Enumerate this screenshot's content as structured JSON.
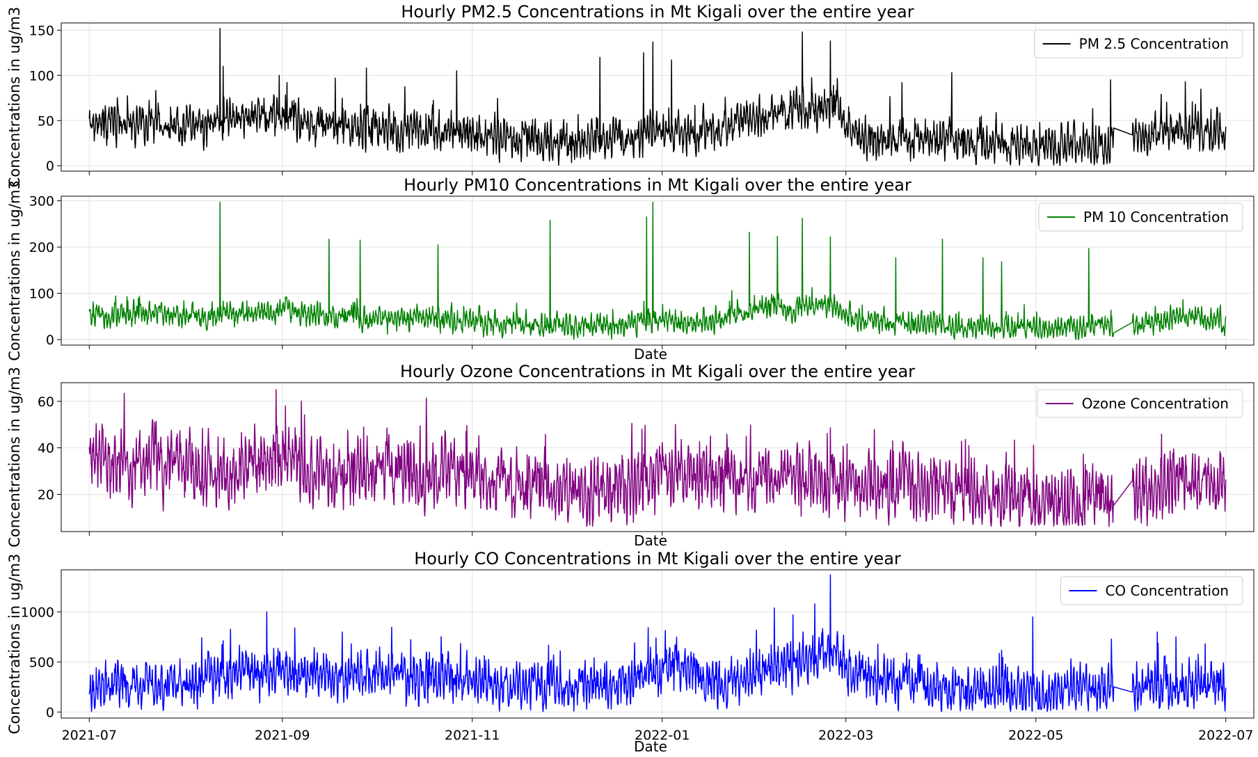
{
  "figure": {
    "x_ticks": [
      "2021-07",
      "2021-09",
      "2021-11",
      "2022-01",
      "2022-03",
      "2022-05",
      "2022-07"
    ],
    "x_range": [
      "2021-06-22",
      "2022-07-10"
    ],
    "data_range": [
      "2021-07-01",
      "2022-07-01"
    ],
    "gap": [
      "2022-05-26",
      "2022-06-01"
    ]
  },
  "chart_data": [
    {
      "type": "line",
      "title": "Hourly PM2.5 Concentrations in Mt Kigali over the entire year",
      "xlabel": "",
      "ylabel": "Concentrations in ug/m3",
      "ylim": [
        -6,
        158
      ],
      "y_ticks": [
        0,
        50,
        100,
        150
      ],
      "grid": true,
      "legend": "top-right",
      "series": [
        {
          "name": "PM 2.5 Concentration",
          "color": "#000000",
          "base_profile": [
            [
              "2021-07-01",
              45
            ],
            [
              "2021-07-20",
              48
            ],
            [
              "2021-08-05",
              42
            ],
            [
              "2021-08-20",
              50
            ],
            [
              "2021-09-01",
              55
            ],
            [
              "2021-09-20",
              40
            ],
            [
              "2021-10-15",
              42
            ],
            [
              "2021-11-15",
              28
            ],
            [
              "2021-12-15",
              26
            ],
            [
              "2022-01-01",
              40
            ],
            [
              "2022-01-10",
              32
            ],
            [
              "2022-02-01",
              55
            ],
            [
              "2022-02-25",
              65
            ],
            [
              "2022-03-05",
              32
            ],
            [
              "2022-04-01",
              28
            ],
            [
              "2022-05-01",
              22
            ],
            [
              "2022-05-26",
              28
            ],
            [
              "2022-06-01",
              30
            ],
            [
              "2022-06-20",
              42
            ],
            [
              "2022-07-01",
              35
            ]
          ],
          "noise": 12,
          "floor": 0,
          "peaks": [
            [
              "2021-08-12",
              152
            ],
            [
              "2021-08-13",
              110
            ],
            [
              "2021-08-31",
              100
            ],
            [
              "2021-09-28",
              108
            ],
            [
              "2021-09-18",
              97
            ],
            [
              "2021-10-27",
              105
            ],
            [
              "2021-12-12",
              120
            ],
            [
              "2021-12-26",
              125
            ],
            [
              "2021-12-29",
              137
            ],
            [
              "2022-01-04",
              117
            ],
            [
              "2022-02-15",
              148
            ],
            [
              "2022-02-24",
              138
            ],
            [
              "2022-03-19",
              92
            ],
            [
              "2022-04-04",
              103
            ],
            [
              "2022-05-25",
              95
            ],
            [
              "2022-06-18",
              93
            ]
          ]
        }
      ]
    },
    {
      "type": "line",
      "title": "Hourly PM10 Concentrations in Mt Kigali over the entire year",
      "xlabel": "Date",
      "ylabel": "Concentrations in ug/m3",
      "ylim": [
        -12,
        310
      ],
      "y_ticks": [
        0,
        100,
        200,
        300
      ],
      "grid": true,
      "legend": "top-right",
      "series": [
        {
          "name": "PM 10 Concentration",
          "color": "#008000",
          "base_profile": [
            [
              "2021-07-01",
              50
            ],
            [
              "2021-07-20",
              60
            ],
            [
              "2021-08-05",
              52
            ],
            [
              "2021-08-20",
              55
            ],
            [
              "2021-09-01",
              65
            ],
            [
              "2021-09-20",
              45
            ],
            [
              "2021-10-15",
              45
            ],
            [
              "2021-11-15",
              32
            ],
            [
              "2021-12-15",
              30
            ],
            [
              "2022-01-01",
              45
            ],
            [
              "2022-01-10",
              35
            ],
            [
              "2022-02-01",
              65
            ],
            [
              "2022-02-25",
              75
            ],
            [
              "2022-03-05",
              38
            ],
            [
              "2022-04-01",
              32
            ],
            [
              "2022-05-01",
              25
            ],
            [
              "2022-05-26",
              30
            ],
            [
              "2022-06-01",
              32
            ],
            [
              "2022-06-20",
              48
            ],
            [
              "2022-07-01",
              40
            ]
          ],
          "noise": 14,
          "floor": 0,
          "peaks": [
            [
              "2021-08-12",
              297
            ],
            [
              "2021-09-16",
              217
            ],
            [
              "2021-09-26",
              215
            ],
            [
              "2021-10-21",
              205
            ],
            [
              "2021-11-26",
              258
            ],
            [
              "2021-12-27",
              265
            ],
            [
              "2021-12-29",
              297
            ],
            [
              "2022-01-29",
              232
            ],
            [
              "2022-02-07",
              223
            ],
            [
              "2022-02-15",
              262
            ],
            [
              "2022-02-24",
              222
            ],
            [
              "2022-03-17",
              177
            ],
            [
              "2022-04-01",
              217
            ],
            [
              "2022-04-14",
              177
            ],
            [
              "2022-04-20",
              168
            ],
            [
              "2022-05-18",
              197
            ]
          ]
        }
      ]
    },
    {
      "type": "line",
      "title": "Hourly Ozone Concentrations in Mt Kigali over the entire year",
      "xlabel": "Date",
      "ylabel": "Concentrations in ug/m3",
      "ylim": [
        4,
        68
      ],
      "y_ticks": [
        20,
        40,
        60
      ],
      "grid": true,
      "legend": "top-right",
      "series": [
        {
          "name": "Ozone Concentration",
          "color": "#800080",
          "base_profile": [
            [
              "2021-07-01",
              33
            ],
            [
              "2021-07-15",
              32
            ],
            [
              "2021-07-25",
              35
            ],
            [
              "2021-08-10",
              28
            ],
            [
              "2021-08-30",
              38
            ],
            [
              "2021-09-15",
              27
            ],
            [
              "2021-10-15",
              30
            ],
            [
              "2021-11-15",
              25
            ],
            [
              "2021-12-15",
              20
            ],
            [
              "2022-01-05",
              30
            ],
            [
              "2022-02-01",
              26
            ],
            [
              "2022-03-01",
              25
            ],
            [
              "2022-04-01",
              22
            ],
            [
              "2022-05-01",
              16
            ],
            [
              "2022-05-26",
              18
            ],
            [
              "2022-06-01",
              20
            ],
            [
              "2022-06-20",
              27
            ],
            [
              "2022-07-01",
              26
            ]
          ],
          "noise": 8,
          "floor": 6,
          "peaks": [
            [
              "2021-08-30",
              65
            ],
            [
              "2021-09-02",
              58
            ],
            [
              "2021-07-22",
              51
            ],
            [
              "2021-10-30",
              47
            ],
            [
              "2022-01-28",
              45
            ],
            [
              "2022-03-16",
              43
            ]
          ]
        }
      ]
    },
    {
      "type": "line",
      "title": "Hourly CO Concentrations in Mt Kigali over the entire year",
      "xlabel": "Date",
      "ylabel": "Concentrations in ug/m3",
      "ylim": [
        -60,
        1420
      ],
      "y_ticks": [
        0,
        500,
        1000
      ],
      "grid": true,
      "legend": "top-right",
      "series": [
        {
          "name": "CO Concentration",
          "color": "#0000ff",
          "base_profile": [
            [
              "2021-07-01",
              250
            ],
            [
              "2021-08-01",
              300
            ],
            [
              "2021-08-20",
              400
            ],
            [
              "2021-09-10",
              380
            ],
            [
              "2021-10-15",
              350
            ],
            [
              "2021-11-15",
              260
            ],
            [
              "2021-12-15",
              250
            ],
            [
              "2022-01-05",
              450
            ],
            [
              "2022-01-20",
              300
            ],
            [
              "2022-02-10",
              450
            ],
            [
              "2022-02-25",
              560
            ],
            [
              "2022-03-10",
              320
            ],
            [
              "2022-04-01",
              250
            ],
            [
              "2022-05-01",
              200
            ],
            [
              "2022-05-26",
              220
            ],
            [
              "2022-06-01",
              230
            ],
            [
              "2022-06-20",
              260
            ],
            [
              "2022-07-01",
              240
            ]
          ],
          "noise": 130,
          "floor": 5,
          "peaks": [
            [
              "2021-08-27",
              1000
            ],
            [
              "2021-09-05",
              840
            ],
            [
              "2022-02-06",
              1040
            ],
            [
              "2022-02-12",
              970
            ],
            [
              "2022-02-24",
              1370
            ],
            [
              "2022-02-19",
              1080
            ],
            [
              "2022-04-30",
              950
            ],
            [
              "2022-06-09",
              800
            ],
            [
              "2022-06-15",
              750
            ]
          ]
        }
      ]
    }
  ]
}
